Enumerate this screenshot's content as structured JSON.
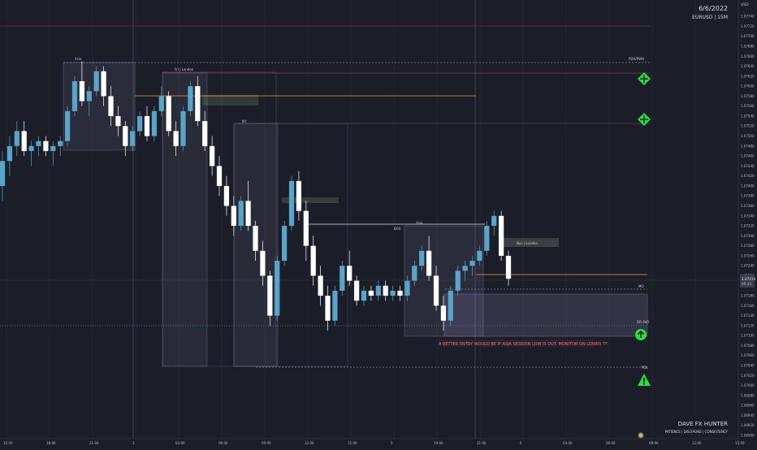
{
  "header": {
    "date": "6/6/2022",
    "symbol": "EURUSD | 15M",
    "currency": "USD"
  },
  "footer": {
    "brand": "DAVE FX HUNTER",
    "tagline": "PATIENCE  |  DISCIPLINE  |  CONSISTENCY"
  },
  "price_tag": {
    "price": "1.07214",
    "countdown": "00:33"
  },
  "annotations": {
    "asia": "Asia",
    "frl": "Frl | London",
    "ny": "NY",
    "nys_london": "Nys | London",
    "bos": "BOS",
    "asia2": "Asia",
    "pdh_pwh": "PDH/PWH",
    "mo": "MO",
    "dr_avo": "DR AVO",
    "pdl": "PDL",
    "note": "A BETTER ENTRY WOULD BE IF ASIA SESSION LOW IS OUT. MONITOR ON LOWER TF."
  },
  "colors": {
    "background": "#1b1e28",
    "bull": "#5aa4c8",
    "bear": "#ffffff",
    "box": "#8a80b0",
    "green_icon": "#2edb4a",
    "orange_line": "#e3a33a",
    "red_line": "#b04a55",
    "teal_line": "#3a9e9a"
  },
  "chart_data": {
    "type": "candlestick",
    "symbol": "EURUSD",
    "timeframe": "15M",
    "ylim": [
      1.069,
      1.078
    ],
    "yticks": [
      "1.07740",
      "1.07720",
      "1.07700",
      "1.07680",
      "1.07660",
      "1.07640",
      "1.07620",
      "1.07600",
      "1.07580",
      "1.07560",
      "1.07540",
      "1.07520",
      "1.07500",
      "1.07480",
      "1.07460",
      "1.07440",
      "1.07420",
      "1.07400",
      "1.07380",
      "1.07360",
      "1.07340",
      "1.07320",
      "1.07300",
      "1.07280",
      "1.07260",
      "1.07240",
      "1.07220",
      "1.07200",
      "1.07180",
      "1.07160",
      "1.07140",
      "1.07120",
      "1.07100",
      "1.07080",
      "1.07060",
      "1.07040",
      "1.07020",
      "1.07000",
      "1.06980",
      "1.06960",
      "1.06940",
      "1.06920",
      "1.06900"
    ],
    "xticks": [
      "15:00",
      "18:00",
      "21:00",
      "3",
      "03:00",
      "06:00",
      "09:00",
      "12:00",
      "15:00",
      "5",
      "19:00",
      "21:00",
      "6",
      "03:00",
      "06:00",
      "09:00",
      "12:00",
      "15:00",
      "18:00"
    ],
    "levels": [
      {
        "label": "PDH/PWH",
        "price": 1.07642
      },
      {
        "label": "MO",
        "price": 1.07186
      },
      {
        "label": "DR AVO",
        "price": 1.07122
      },
      {
        "label": "PDL",
        "price": 1.07045
      }
    ],
    "candles": [
      [
        1.074,
        1.0747,
        1.0737,
        1.0745
      ],
      [
        1.0745,
        1.075,
        1.0742,
        1.0748
      ],
      [
        1.0748,
        1.0753,
        1.0746,
        1.0751
      ],
      [
        1.0751,
        1.0753,
        1.0746,
        1.0747
      ],
      [
        1.0747,
        1.0749,
        1.0744,
        1.0748
      ],
      [
        1.0748,
        1.075,
        1.0746,
        1.0749
      ],
      [
        1.0749,
        1.075,
        1.0746,
        1.0747
      ],
      [
        1.0747,
        1.0749,
        1.0744,
        1.0748
      ],
      [
        1.0748,
        1.075,
        1.0746,
        1.0749
      ],
      [
        1.0749,
        1.0756,
        1.0748,
        1.0755
      ],
      [
        1.0755,
        1.0762,
        1.0754,
        1.0761
      ],
      [
        1.0761,
        1.0765,
        1.0756,
        1.0757
      ],
      [
        1.0757,
        1.076,
        1.0754,
        1.0759
      ],
      [
        1.0759,
        1.0764,
        1.0758,
        1.0763
      ],
      [
        1.0763,
        1.0764,
        1.0756,
        1.0758
      ],
      [
        1.0758,
        1.076,
        1.0752,
        1.0754
      ],
      [
        1.0754,
        1.0756,
        1.075,
        1.0752
      ],
      [
        1.0752,
        1.0753,
        1.0746,
        1.0748
      ],
      [
        1.0748,
        1.0752,
        1.0747,
        1.0751
      ],
      [
        1.0751,
        1.0755,
        1.075,
        1.0754
      ],
      [
        1.0754,
        1.0756,
        1.0749,
        1.075
      ],
      [
        1.075,
        1.0756,
        1.0749,
        1.0755
      ],
      [
        1.0755,
        1.076,
        1.0754,
        1.0758
      ],
      [
        1.0758,
        1.0759,
        1.075,
        1.0751
      ],
      [
        1.0751,
        1.0753,
        1.0746,
        1.0748
      ],
      [
        1.0748,
        1.0756,
        1.0747,
        1.0755
      ],
      [
        1.0755,
        1.0761,
        1.0754,
        1.076
      ],
      [
        1.076,
        1.0762,
        1.0752,
        1.0753
      ],
      [
        1.0753,
        1.0755,
        1.0747,
        1.0748
      ],
      [
        1.0748,
        1.075,
        1.0742,
        1.0744
      ],
      [
        1.0744,
        1.0746,
        1.0738,
        1.074
      ],
      [
        1.074,
        1.0742,
        1.0734,
        1.0736
      ],
      [
        1.0736,
        1.0738,
        1.073,
        1.0732
      ],
      [
        1.0732,
        1.0738,
        1.0731,
        1.0737
      ],
      [
        1.0737,
        1.0741,
        1.0731,
        1.0732
      ],
      [
        1.0732,
        1.0733,
        1.0725,
        1.0727
      ],
      [
        1.0727,
        1.0729,
        1.072,
        1.0722
      ],
      [
        1.0722,
        1.0723,
        1.0712,
        1.0714
      ],
      [
        1.0714,
        1.0726,
        1.0713,
        1.0725
      ],
      [
        1.0725,
        1.0733,
        1.0724,
        1.0732
      ],
      [
        1.0732,
        1.0742,
        1.0731,
        1.0741
      ],
      [
        1.0741,
        1.0743,
        1.0733,
        1.0735
      ],
      [
        1.0735,
        1.0737,
        1.0725,
        1.0728
      ],
      [
        1.0728,
        1.073,
        1.072,
        1.0722
      ],
      [
        1.0722,
        1.0724,
        1.0716,
        1.0718
      ],
      [
        1.0718,
        1.072,
        1.0711,
        1.0713
      ],
      [
        1.0713,
        1.072,
        1.0712,
        1.0719
      ],
      [
        1.0719,
        1.0725,
        1.0718,
        1.0724
      ],
      [
        1.0724,
        1.0727,
        1.072,
        1.0721
      ],
      [
        1.0721,
        1.0722,
        1.0716,
        1.0717
      ],
      [
        1.0717,
        1.072,
        1.0716,
        1.0719
      ],
      [
        1.0719,
        1.072,
        1.0717,
        1.0718
      ],
      [
        1.0718,
        1.0721,
        1.0717,
        1.072
      ],
      [
        1.072,
        1.0721,
        1.0717,
        1.0718
      ],
      [
        1.0718,
        1.072,
        1.0717,
        1.0719
      ],
      [
        1.0719,
        1.072,
        1.0717,
        1.0718
      ],
      [
        1.0718,
        1.0722,
        1.0717,
        1.0721
      ],
      [
        1.0721,
        1.0725,
        1.072,
        1.0724
      ],
      [
        1.0724,
        1.0728,
        1.0723,
        1.0727
      ],
      [
        1.0727,
        1.073,
        1.0721,
        1.0722
      ],
      [
        1.0722,
        1.0724,
        1.0715,
        1.0716
      ],
      [
        1.0716,
        1.0718,
        1.0711,
        1.0713
      ],
      [
        1.0713,
        1.072,
        1.0712,
        1.0719
      ],
      [
        1.0719,
        1.0724,
        1.0718,
        1.0723
      ],
      [
        1.0723,
        1.0725,
        1.0721,
        1.0724
      ],
      [
        1.0724,
        1.0726,
        1.0722,
        1.0725
      ],
      [
        1.0725,
        1.0728,
        1.0724,
        1.0727
      ],
      [
        1.0727,
        1.0733,
        1.0726,
        1.0732
      ],
      [
        1.0732,
        1.0735,
        1.073,
        1.0734
      ],
      [
        1.0734,
        1.0735,
        1.0725,
        1.0726
      ],
      [
        1.0726,
        1.0727,
        1.072,
        1.07214
      ]
    ]
  }
}
